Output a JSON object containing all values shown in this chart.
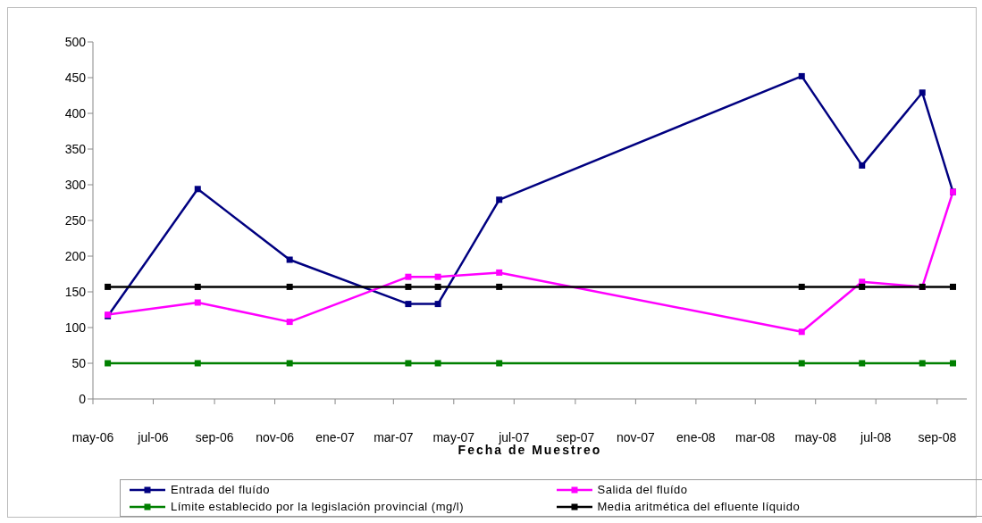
{
  "chart_data": {
    "type": "line",
    "xlabel": "Fecha de Muestreo",
    "xlim": [
      "2006-05-01",
      "2008-10-01"
    ],
    "xticks": [
      {
        "value": "2006-05-01",
        "label": "may-06"
      },
      {
        "value": "2006-07-01",
        "label": "jul-06"
      },
      {
        "value": "2006-09-01",
        "label": "sep-06"
      },
      {
        "value": "2006-11-01",
        "label": "nov-06"
      },
      {
        "value": "2007-01-01",
        "label": "ene-07"
      },
      {
        "value": "2007-03-01",
        "label": "mar-07"
      },
      {
        "value": "2007-05-01",
        "label": "may-07"
      },
      {
        "value": "2007-07-01",
        "label": "jul-07"
      },
      {
        "value": "2007-09-01",
        "label": "sep-07"
      },
      {
        "value": "2007-11-01",
        "label": "nov-07"
      },
      {
        "value": "2008-01-01",
        "label": "ene-08"
      },
      {
        "value": "2008-03-01",
        "label": "mar-08"
      },
      {
        "value": "2008-05-01",
        "label": "may-08"
      },
      {
        "value": "2008-07-01",
        "label": "jul-08"
      },
      {
        "value": "2008-09-01",
        "label": "sep-08"
      }
    ],
    "x": [
      "2006-05-16",
      "2006-08-15",
      "2006-11-16",
      "2007-03-16",
      "2007-04-15",
      "2007-06-16",
      "2008-04-17",
      "2008-06-17",
      "2008-08-17",
      "2008-09-17"
    ],
    "ylim": [
      0,
      500
    ],
    "yticks": [
      0,
      50,
      100,
      150,
      200,
      250,
      300,
      350,
      400,
      450,
      500
    ],
    "grid": false,
    "legend": "bottom",
    "marker": "square",
    "line_style": "solid",
    "series": [
      {
        "name": "Entrada del fluído",
        "color": "#000080",
        "values": [
          116,
          294,
          195,
          133,
          133,
          279,
          452,
          327,
          429,
          290
        ]
      },
      {
        "name": "Salida del fluído",
        "color": "#ff00ff",
        "values": [
          118,
          135,
          108,
          171,
          171,
          177,
          94,
          164,
          157,
          290
        ]
      },
      {
        "name": "Límite establecido por la legislación provincial (mg/l)",
        "color": "#008000",
        "values": [
          50,
          50,
          50,
          50,
          50,
          50,
          50,
          50,
          50,
          50
        ]
      },
      {
        "name": "Media aritmética del efluente líquido",
        "color": "#000000",
        "values": [
          157,
          157,
          157,
          157,
          157,
          157,
          157,
          157,
          157,
          157
        ]
      }
    ]
  }
}
